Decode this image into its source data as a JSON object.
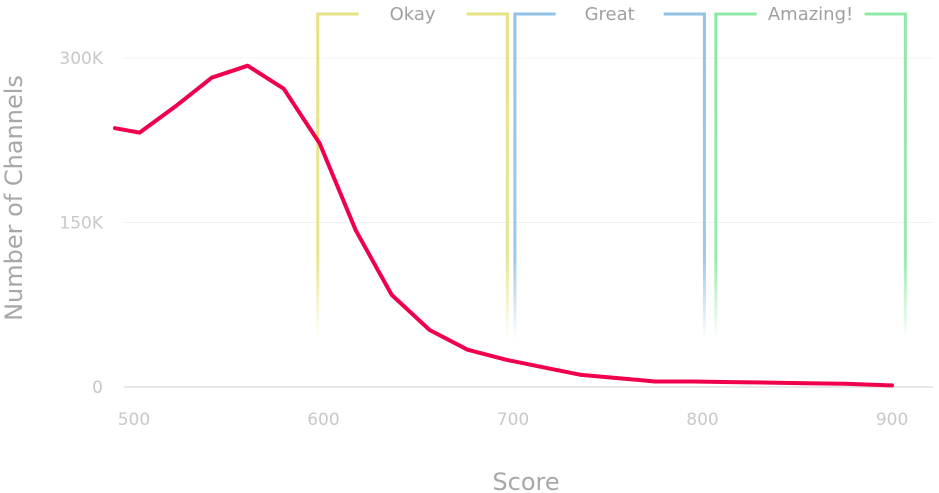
{
  "chart_data": {
    "type": "line",
    "xlabel": "Score",
    "ylabel": "Number of Channels",
    "xlim": [
      490,
      910
    ],
    "ylim": [
      0,
      300000
    ],
    "x_ticks": [
      {
        "value": 500,
        "label": "500"
      },
      {
        "value": 600,
        "label": "600"
      },
      {
        "value": 700,
        "label": "700"
      },
      {
        "value": 800,
        "label": "800"
      },
      {
        "value": 900,
        "label": "900"
      }
    ],
    "y_ticks": [
      {
        "value": 0,
        "label": "0"
      },
      {
        "value": 150000,
        "label": "150K"
      },
      {
        "value": 300000,
        "label": "300K"
      }
    ],
    "grid": true,
    "series": [
      {
        "color": "#f0004c",
        "x": [
          490,
          503,
          522,
          541,
          560,
          579,
          598,
          617,
          636,
          656,
          676,
          696,
          716,
          736,
          756,
          775,
          795,
          815,
          835,
          855,
          875,
          900
        ],
        "y": [
          236000,
          232000,
          256000,
          282000,
          293000,
          272000,
          222000,
          143000,
          84000,
          52000,
          34000,
          25000,
          18000,
          11000,
          8000,
          5000,
          5000,
          4500,
          4000,
          3500,
          3000,
          1500
        ]
      }
    ],
    "bands": [
      {
        "label": "Okay",
        "x_start": 597,
        "x_end": 697,
        "color": "#e6e281"
      },
      {
        "label": "Great",
        "x_start": 701,
        "x_end": 801,
        "color": "#92c2e8"
      },
      {
        "label": "Amazing!",
        "x_start": 807,
        "x_end": 907,
        "color": "#8fe8a6"
      }
    ]
  }
}
